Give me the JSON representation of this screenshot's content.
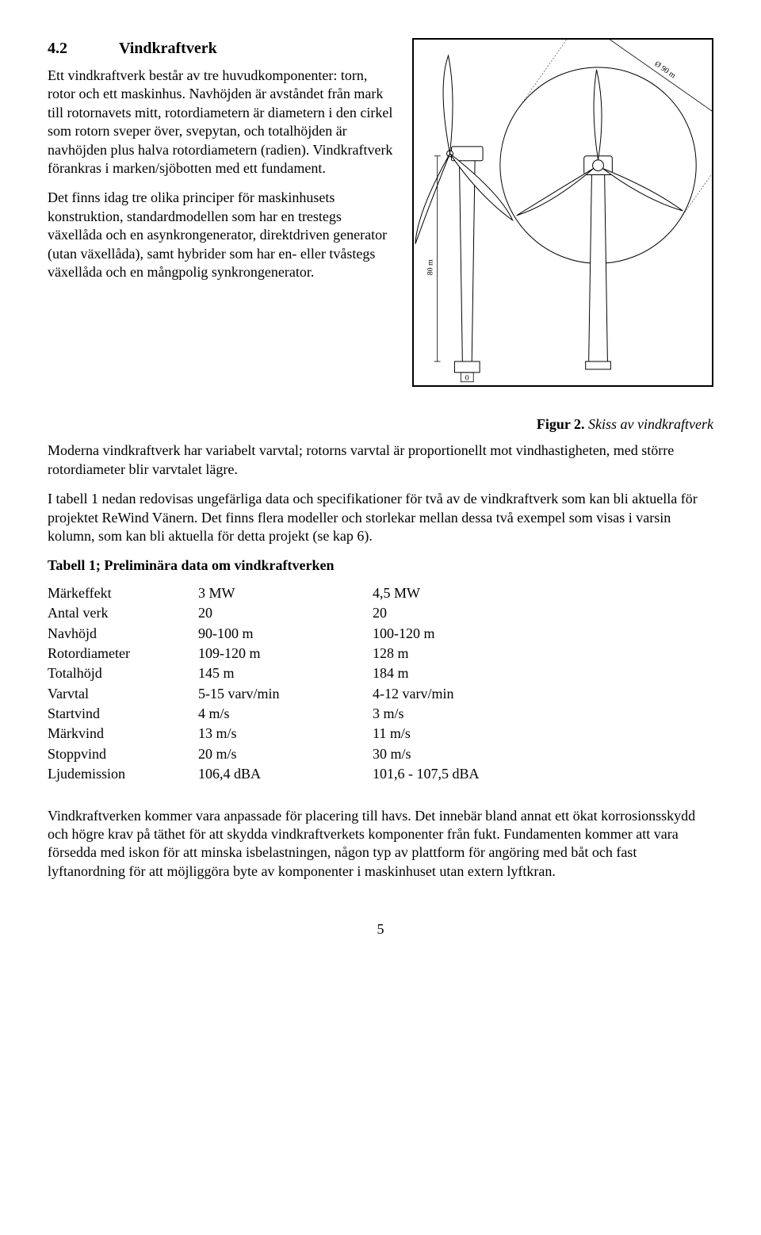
{
  "section": {
    "number": "4.2",
    "title": "Vindkraftverk"
  },
  "p1": "Ett vindkraftverk består av tre huvudkomponenter: torn, rotor och ett maskinhus. Navhöjden är avståndet från mark till rotornavets mitt, rotordiametern är diametern i den cirkel som rotorn sveper över, svepytan, och totalhöjden är navhöjden plus halva rotordiametern (radien). Vindkraftverk förankras i marken/sjöbotten med ett fundament.",
  "p2": "Det finns idag tre olika principer för maskinhusets konstruktion, standardmodellen som har en trestegs växellåda och en asynkrongenerator, direktdriven generator (utan växellåda), samt hybrider som har en- eller tvåstegs växellåda och en mångpolig synkrongenerator.",
  "caption": {
    "label": "Figur 2.",
    "text": " Skiss av vindkraftverk"
  },
  "p3": "Moderna vindkraftverk har variabelt varvtal; rotorns varvtal är proportionellt mot vindhastigheten, med större rotordiameter blir varvtalet lägre.",
  "p4": "I tabell 1 nedan redovisas ungefärliga data och specifikationer för två av de vindkraftverk som kan bli aktuella för projektet ReWind Vänern. Det finns flera modeller och storlekar mellan dessa två exempel som visas i varsin kolumn, som kan bli aktuella för detta projekt (se kap 6).",
  "table_title": "Tabell 1; Preliminära data om vindkraftverken",
  "table": {
    "rows": [
      [
        "Märkeffekt",
        "3 MW",
        "4,5 MW"
      ],
      [
        "Antal verk",
        "20",
        "20"
      ],
      [
        "Navhöjd",
        "90-100 m",
        "100-120 m"
      ],
      [
        "Rotordiameter",
        "109-120 m",
        "128 m"
      ],
      [
        "Totalhöjd",
        "145 m",
        "184 m"
      ],
      [
        "Varvtal",
        "5-15 varv/min",
        "4-12 varv/min"
      ],
      [
        "Startvind",
        "4 m/s",
        "3 m/s"
      ],
      [
        "Märkvind",
        "13 m/s",
        "11 m/s"
      ],
      [
        "Stoppvind",
        "20 m/s",
        "30 m/s"
      ],
      [
        "Ljudemission",
        "106,4 dBA",
        "101,6 - 107,5 dBA"
      ]
    ]
  },
  "p5": "Vindkraftverken kommer vara anpassade för placering till havs. Det innebär bland annat ett ökat korrosionsskydd och högre krav på täthet för att skydda vindkraftverkets komponenter från fukt. Fundamenten kommer att vara försedda med iskon för att minska isbelastningen, någon typ av plattform för angöring med båt och fast lyftanordning för att möjliggöra byte av komponenter i maskinhuset utan extern lyftkran.",
  "pagenum": "5",
  "figure": {
    "diameter_label": "Ø 90 m",
    "height_label": "80 m",
    "ground_label": "0",
    "stroke": "#000000",
    "fill": "#ffffff"
  }
}
